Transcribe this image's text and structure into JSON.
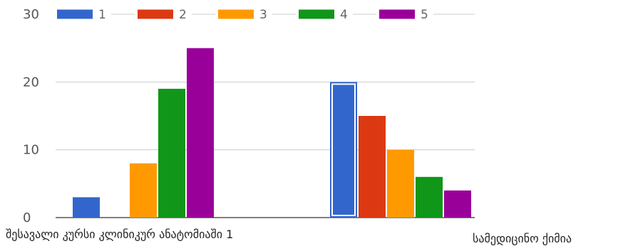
{
  "chart_data": {
    "type": "bar",
    "categories": [
      "შესავალი კურსი კლინიკურ ანატომიაში 1",
      "სამედიცინო ქიმია"
    ],
    "series": [
      {
        "name": "1",
        "color": "#3366cc",
        "values": [
          3,
          20
        ]
      },
      {
        "name": "2",
        "color": "#dc3912",
        "values": [
          0,
          15
        ]
      },
      {
        "name": "3",
        "color": "#ff9900",
        "values": [
          8,
          10
        ]
      },
      {
        "name": "4",
        "color": "#109618",
        "values": [
          19,
          6
        ]
      },
      {
        "name": "5",
        "color": "#990099",
        "values": [
          25,
          4
        ]
      }
    ],
    "yticks": [
      0,
      10,
      20,
      30
    ],
    "ylim": [
      0,
      30
    ],
    "grid": true,
    "legend": "top",
    "highlighted": {
      "series": 0,
      "category": 1
    }
  }
}
